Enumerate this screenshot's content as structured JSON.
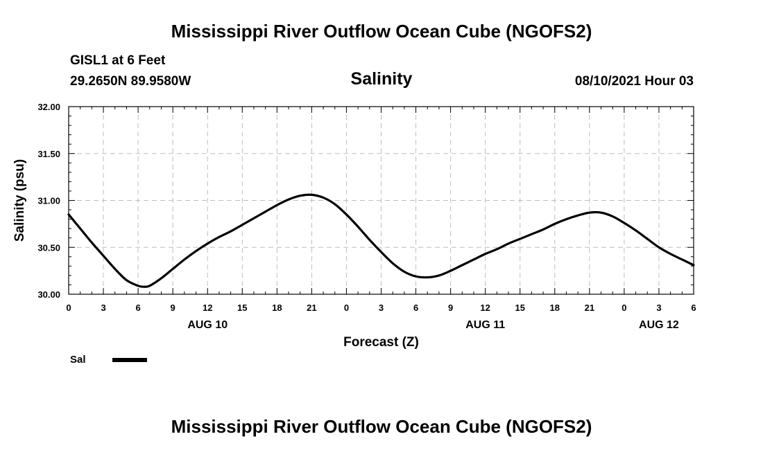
{
  "header": {
    "title": "Mississippi River Outflow Ocean Cube (NGOFS2)",
    "station": "GISL1 at 6 Feet",
    "coordinates": "29.2650N  89.9580W",
    "variable": "Salinity",
    "datetime": "08/10/2021 Hour 03"
  },
  "footer": {
    "title": "Mississippi River Outflow Ocean Cube (NGOFS2)"
  },
  "legend": {
    "label": "Sal"
  },
  "chart_data": {
    "type": "line",
    "title": "Salinity",
    "xlabel": "Forecast (Z)",
    "ylabel": "Salinity (psu)",
    "xlim": [
      0,
      54
    ],
    "ylim": [
      30.0,
      32.0
    ],
    "grid": true,
    "yticks": [
      30.0,
      30.5,
      31.0,
      31.5,
      32.0
    ],
    "ytick_labels": [
      "30.00",
      "30.50",
      "31.00",
      "31.50",
      "32.00"
    ],
    "xticks": [
      0,
      3,
      6,
      9,
      12,
      15,
      18,
      21,
      24,
      27,
      30,
      33,
      36,
      39,
      42,
      45,
      48,
      51,
      54
    ],
    "xtick_labels": [
      "0",
      "3",
      "6",
      "9",
      "12",
      "15",
      "18",
      "21",
      "0",
      "3",
      "6",
      "9",
      "12",
      "15",
      "18",
      "21",
      "0",
      "3",
      "6"
    ],
    "date_labels": [
      {
        "label": "AUG 10",
        "x": 12
      },
      {
        "label": "AUG 11",
        "x": 36
      },
      {
        "label": "AUG 12",
        "x": 51
      }
    ],
    "series": [
      {
        "name": "Sal",
        "color": "#000000",
        "x": [
          0,
          1,
          2,
          3,
          4,
          5,
          6,
          6.5,
          7,
          8,
          9,
          10,
          11,
          12,
          13,
          14,
          15,
          16,
          17,
          18,
          19,
          20,
          21,
          22,
          23,
          24,
          25,
          26,
          27,
          28,
          29,
          30,
          31,
          32,
          33,
          34,
          35,
          36,
          37,
          38,
          39,
          40,
          41,
          42,
          43,
          44,
          45,
          46,
          47,
          48,
          49,
          50,
          51,
          52,
          53,
          54
        ],
        "values": [
          30.85,
          30.7,
          30.55,
          30.41,
          30.27,
          30.15,
          30.09,
          30.08,
          30.09,
          30.17,
          30.27,
          30.37,
          30.46,
          30.54,
          30.61,
          30.67,
          30.74,
          30.81,
          30.88,
          30.95,
          31.01,
          31.05,
          31.06,
          31.03,
          30.96,
          30.85,
          30.72,
          30.58,
          30.45,
          30.33,
          30.24,
          30.19,
          30.18,
          30.2,
          30.25,
          30.31,
          30.37,
          30.43,
          30.48,
          30.54,
          30.59,
          30.64,
          30.69,
          30.75,
          30.8,
          30.84,
          30.87,
          30.87,
          30.83,
          30.76,
          30.68,
          30.59,
          30.5,
          30.43,
          30.37,
          30.31
        ]
      }
    ]
  }
}
